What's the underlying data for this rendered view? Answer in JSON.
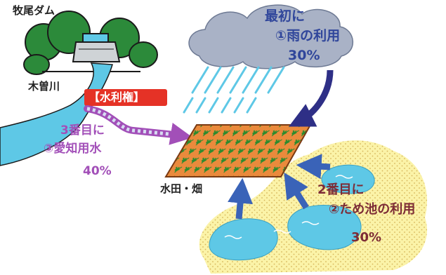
{
  "labels": {
    "dam": "牧尾ダム",
    "river": "木曽川",
    "water_right": "【水利権】",
    "field": "水田・畑"
  },
  "rain": {
    "order": "最初に",
    "name": "①雨の利用",
    "share": "30%"
  },
  "pond": {
    "order": "2番目に",
    "name": "②ため池の利用",
    "share": "30%"
  },
  "canal": {
    "order": "3番目に",
    "name": "③愛知用水",
    "share": "40%"
  },
  "colors": {
    "rain_text": "#30469b",
    "pond_text": "#7d2c36",
    "canal_text": "#a24fb8",
    "water": "#5ec8e6",
    "field": "#e9853a",
    "water_right_box": "#e53226"
  }
}
